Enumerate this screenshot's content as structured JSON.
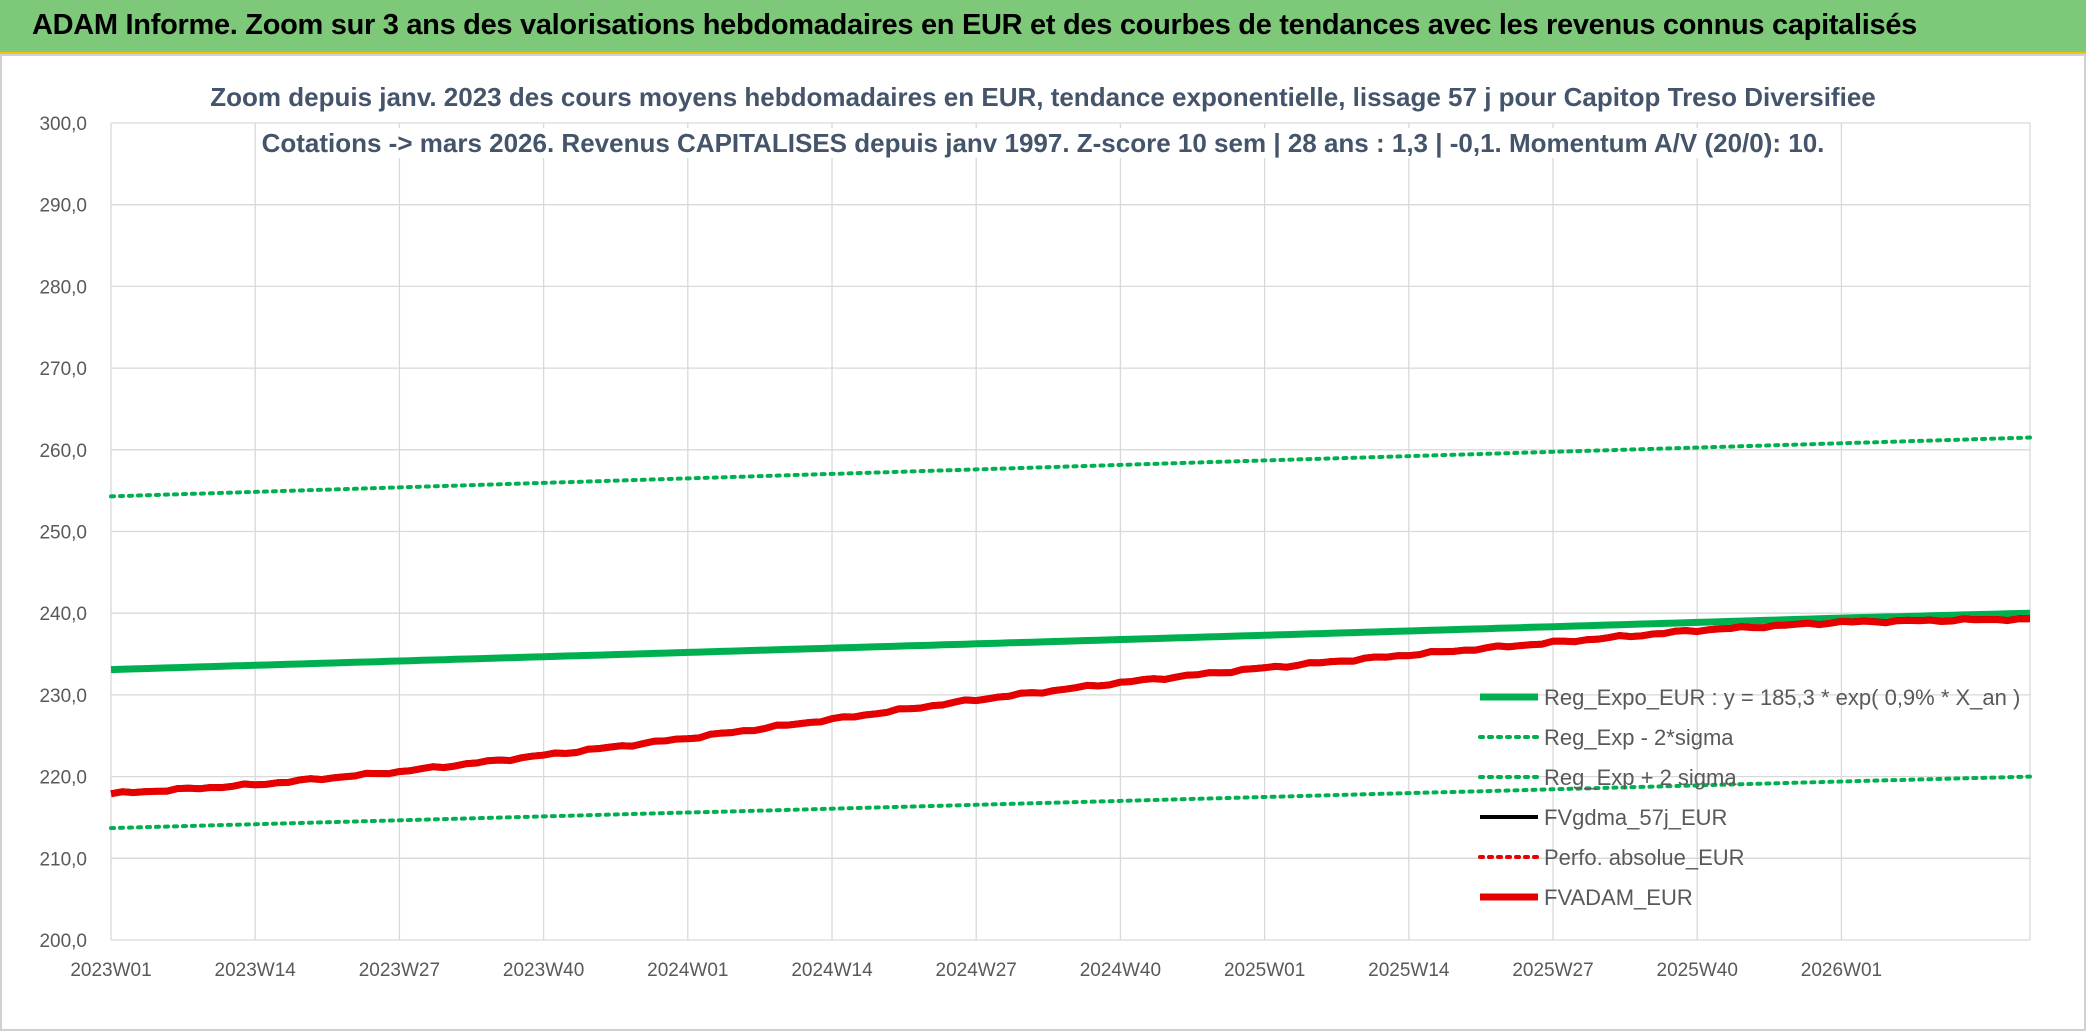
{
  "header": {
    "title": "ADAM Informe. Zoom sur 3 ans des valorisations hebdomadaires en EUR et des courbes de tendances avec les revenus connus capitalisés"
  },
  "colors": {
    "banner_bg": "#7ec87a",
    "banner_border": "#f0c419",
    "title_text": "#44546a",
    "axis_text": "#595959",
    "grid": "#d9d9d9",
    "green": "#00b050",
    "black": "#000000",
    "red": "#e60000"
  },
  "chart_data": {
    "type": "line",
    "title_line1": "Zoom depuis janv. 2023 des cours moyens hebdomadaires en EUR, tendance exponentielle, lissage 57 j pour Capitop Treso Diversifiee",
    "title_line2": "Cotations -> mars 2026. Revenus CAPITALISES depuis janv 1997. Z-score 10 sem | 28 ans : 1,3 | -0,1. Momentum A/V (20/0): 10.",
    "xlabel": "",
    "ylabel": "",
    "ylim": [
      200,
      300
    ],
    "yticks": [
      "200,0",
      "210,0",
      "220,0",
      "230,0",
      "240,0",
      "250,0",
      "260,0",
      "270,0",
      "280,0",
      "290,0",
      "300,0"
    ],
    "x_tick_labels": [
      "2023W01",
      "2023W14",
      "2023W27",
      "2023W40",
      "2024W01",
      "2024W14",
      "2024W27",
      "2024W40",
      "2025W01",
      "2025W14",
      "2025W27",
      "2025W40",
      "2026W01"
    ],
    "x_tick_index": [
      0,
      13,
      26,
      39,
      52,
      65,
      78,
      91,
      104,
      117,
      130,
      143,
      156
    ],
    "x_range_weeks": [
      0,
      173
    ],
    "grid": true,
    "legend_position": "bottom-right",
    "series": [
      {
        "name": "Reg_Expo_EUR : y = 185,3 * exp( 0,9% *  X_an )",
        "style": "thick-solid",
        "color": "#00b050",
        "points": [
          [
            0,
            233.1
          ],
          [
            52,
            235.2
          ],
          [
            104,
            237.3
          ],
          [
            156,
            239.4
          ],
          [
            173,
            240.0
          ]
        ]
      },
      {
        "name": "Reg_Exp - 2*sigma",
        "style": "dotted",
        "color": "#00b050",
        "points": [
          [
            0,
            254.3
          ],
          [
            52,
            256.5
          ],
          [
            104,
            258.7
          ],
          [
            156,
            260.8
          ],
          [
            173,
            261.5
          ]
        ]
      },
      {
        "name": "Reg_Exp + 2 sigma",
        "style": "dotted",
        "color": "#00b050",
        "points": [
          [
            0,
            213.7
          ],
          [
            52,
            215.6
          ],
          [
            104,
            217.5
          ],
          [
            156,
            219.4
          ],
          [
            173,
            220.0
          ]
        ]
      },
      {
        "name": "FVgdma_57j_EUR",
        "style": "solid",
        "color": "#000000",
        "points": [
          [
            0,
            217.9
          ],
          [
            13,
            219.0
          ],
          [
            26,
            220.6
          ],
          [
            39,
            222.6
          ],
          [
            52,
            224.7
          ],
          [
            65,
            227.0
          ],
          [
            78,
            229.4
          ],
          [
            91,
            231.5
          ],
          [
            104,
            233.3
          ],
          [
            117,
            234.9
          ],
          [
            130,
            236.4
          ],
          [
            143,
            237.9
          ],
          [
            156,
            238.9
          ],
          [
            173,
            239.3
          ]
        ]
      },
      {
        "name": "Perfo. absolue_EUR",
        "style": "dotted",
        "color": "#e60000",
        "points": []
      },
      {
        "name": "FVADAM_EUR",
        "style": "thick-solid",
        "color": "#e60000",
        "points": [
          [
            0,
            217.9
          ],
          [
            13,
            219.0
          ],
          [
            26,
            220.6
          ],
          [
            39,
            222.6
          ],
          [
            52,
            224.7
          ],
          [
            65,
            227.0
          ],
          [
            78,
            229.4
          ],
          [
            91,
            231.5
          ],
          [
            104,
            233.3
          ],
          [
            117,
            234.9
          ],
          [
            130,
            236.4
          ],
          [
            143,
            237.9
          ],
          [
            156,
            238.9
          ],
          [
            173,
            239.3
          ]
        ]
      }
    ]
  }
}
